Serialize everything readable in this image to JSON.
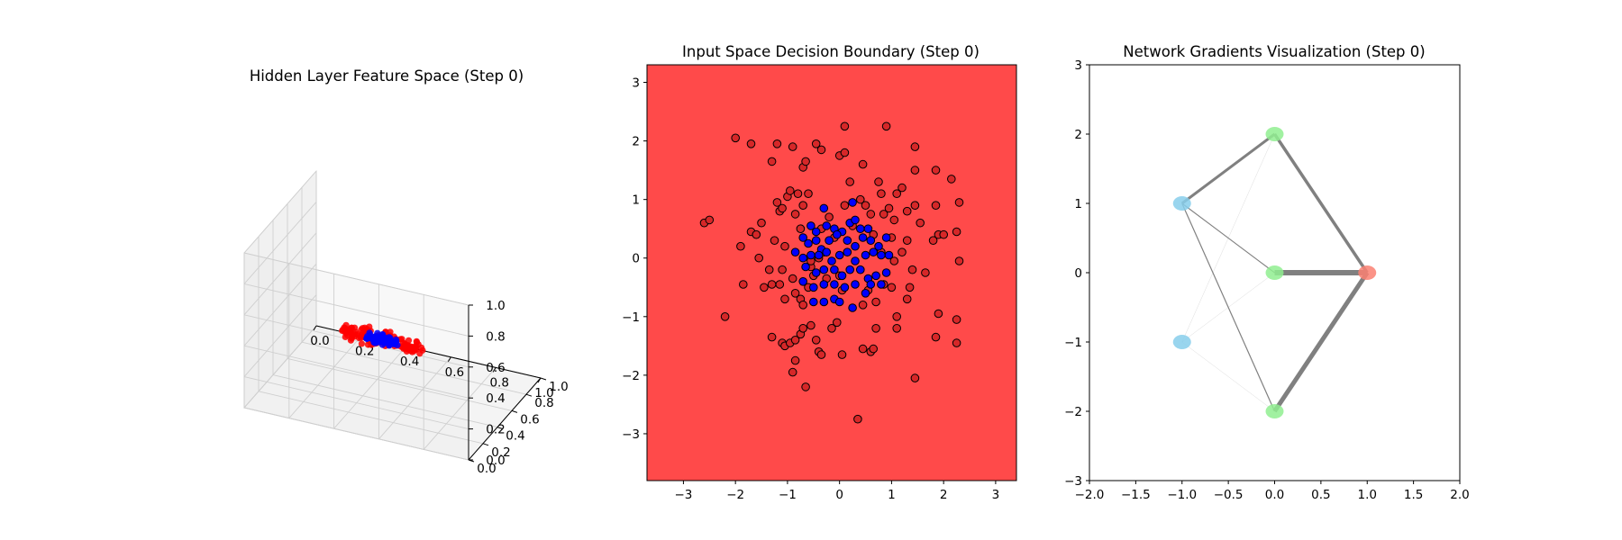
{
  "panels": {
    "hidden": {
      "title": "Hidden Layer Feature Space (Step 0)"
    },
    "input": {
      "title": "Input Space Decision Boundary (Step 0)"
    },
    "network": {
      "title": "Network Gradients Visualization (Step 0)"
    }
  },
  "chart_data": [
    {
      "type": "scatter",
      "projection": "3d",
      "title": "Hidden Layer Feature Space (Step 0)",
      "xlim": [
        0,
        1
      ],
      "ylim": [
        0,
        1
      ],
      "zlim": [
        0,
        1
      ],
      "x_ticks": [
        "0.0",
        "0.2",
        "0.4",
        "0.6",
        "0.8",
        "1.0"
      ],
      "y_ticks": [
        "0.0",
        "0.2",
        "0.4",
        "0.6",
        "0.8",
        "1.0"
      ],
      "z_ticks": [
        "0.0",
        "0.2",
        "0.4",
        "0.6",
        "0.8",
        "1.0"
      ],
      "grid": true,
      "cluster_center": [
        0.45,
        0.5,
        0.33
      ],
      "series": [
        {
          "color": "#ff0000",
          "count": 140
        },
        {
          "color": "#0000ff",
          "count": 60
        }
      ]
    },
    {
      "type": "scatter",
      "title": "Input Space Decision Boundary (Step 0)",
      "xlim": [
        -3.7,
        3.4
      ],
      "ylim": [
        -3.8,
        3.3
      ],
      "x_ticks": [
        "−3",
        "−2",
        "−1",
        "0",
        "1",
        "2",
        "3"
      ],
      "y_ticks": [
        "−3",
        "−2",
        "−1",
        "0",
        "1",
        "2",
        "3"
      ],
      "background_color": "#ff4a4a",
      "series": [
        {
          "color": "#d62728",
          "points": [
            [
              -2.6,
              0.6
            ],
            [
              -2.5,
              0.65
            ],
            [
              -2.0,
              2.05
            ],
            [
              -1.7,
              1.95
            ],
            [
              -1.3,
              1.65
            ],
            [
              -1.2,
              1.95
            ],
            [
              -0.9,
              1.9
            ],
            [
              -0.7,
              1.55
            ],
            [
              -0.65,
              1.65
            ],
            [
              -0.45,
              1.95
            ],
            [
              -0.35,
              1.85
            ],
            [
              0.1,
              2.25
            ],
            [
              0.0,
              1.75
            ],
            [
              0.1,
              1.8
            ],
            [
              0.45,
              1.6
            ],
            [
              0.9,
              2.25
            ],
            [
              1.45,
              1.9
            ],
            [
              -2.2,
              -1.0
            ],
            [
              -1.9,
              0.2
            ],
            [
              -1.85,
              -0.45
            ],
            [
              -1.7,
              0.45
            ],
            [
              -1.6,
              0.4
            ],
            [
              -1.55,
              0.0
            ],
            [
              -1.5,
              0.6
            ],
            [
              -1.45,
              -0.5
            ],
            [
              -1.3,
              -0.45
            ],
            [
              -1.25,
              0.3
            ],
            [
              -1.2,
              0.95
            ],
            [
              -1.15,
              0.8
            ],
            [
              -1.1,
              0.85
            ],
            [
              -1.05,
              0.2
            ],
            [
              -1.0,
              1.05
            ],
            [
              -0.95,
              1.15
            ],
            [
              -0.85,
              0.75
            ],
            [
              -0.8,
              1.1
            ],
            [
              -0.75,
              0.5
            ],
            [
              -0.7,
              0.9
            ],
            [
              -0.6,
              1.1
            ],
            [
              -1.35,
              -0.2
            ],
            [
              -1.15,
              -0.45
            ],
            [
              -1.1,
              -0.2
            ],
            [
              -1.05,
              -0.7
            ],
            [
              -0.9,
              -0.35
            ],
            [
              -0.85,
              -0.6
            ],
            [
              -0.75,
              -0.7
            ],
            [
              -0.7,
              -0.8
            ],
            [
              -0.6,
              -0.5
            ],
            [
              -0.55,
              -0.15
            ],
            [
              -0.5,
              -0.3
            ],
            [
              -0.55,
              -0.05
            ],
            [
              -0.4,
              0.0
            ],
            [
              -1.3,
              -1.35
            ],
            [
              -1.1,
              -1.45
            ],
            [
              -1.05,
              -1.5
            ],
            [
              -0.95,
              -1.45
            ],
            [
              -0.85,
              -1.4
            ],
            [
              -0.75,
              -1.3
            ],
            [
              -0.7,
              -1.2
            ],
            [
              -0.55,
              -1.15
            ],
            [
              -0.45,
              -1.4
            ],
            [
              -0.4,
              -1.6
            ],
            [
              -0.35,
              -1.65
            ],
            [
              -0.15,
              -1.2
            ],
            [
              -0.05,
              -1.1
            ],
            [
              0.05,
              -1.65
            ],
            [
              -0.9,
              -1.95
            ],
            [
              -0.85,
              -1.75
            ],
            [
              -0.65,
              -2.2
            ],
            [
              0.45,
              -1.55
            ],
            [
              0.6,
              -1.6
            ],
            [
              0.65,
              -1.55
            ],
            [
              0.7,
              -1.2
            ],
            [
              0.35,
              -2.75
            ],
            [
              1.1,
              -1.2
            ],
            [
              1.1,
              -1.0
            ],
            [
              1.45,
              -2.05
            ],
            [
              1.85,
              -1.35
            ],
            [
              1.9,
              -0.95
            ],
            [
              2.25,
              -1.05
            ],
            [
              2.25,
              -1.45
            ],
            [
              0.2,
              1.3
            ],
            [
              0.4,
              1.0
            ],
            [
              0.5,
              0.9
            ],
            [
              0.6,
              0.75
            ],
            [
              0.75,
              1.3
            ],
            [
              0.8,
              1.1
            ],
            [
              0.85,
              0.75
            ],
            [
              0.95,
              0.85
            ],
            [
              1.0,
              0.35
            ],
            [
              1.05,
              0.65
            ],
            [
              1.1,
              1.1
            ],
            [
              1.2,
              1.2
            ],
            [
              1.3,
              0.8
            ],
            [
              1.45,
              1.5
            ],
            [
              1.45,
              0.9
            ],
            [
              1.55,
              0.6
            ],
            [
              1.85,
              1.5
            ],
            [
              1.8,
              0.3
            ],
            [
              1.85,
              0.9
            ],
            [
              1.9,
              0.4
            ],
            [
              2.15,
              1.35
            ],
            [
              2.3,
              0.95
            ],
            [
              2.25,
              0.45
            ],
            [
              2.0,
              0.4
            ],
            [
              2.3,
              -0.05
            ],
            [
              1.3,
              0.3
            ],
            [
              1.2,
              0.1
            ],
            [
              1.05,
              -0.05
            ],
            [
              1.4,
              -0.2
            ],
            [
              1.35,
              -0.5
            ],
            [
              1.3,
              -0.7
            ],
            [
              1.0,
              -0.5
            ],
            [
              0.85,
              -0.45
            ],
            [
              0.7,
              -0.75
            ],
            [
              0.55,
              -0.55
            ],
            [
              0.45,
              -0.8
            ],
            [
              0.65,
              0.4
            ],
            [
              0.8,
              0.1
            ],
            [
              -0.3,
              0.1
            ],
            [
              -0.25,
              -0.35
            ],
            [
              0.05,
              -0.55
            ],
            [
              0.0,
              -0.3
            ],
            [
              -0.2,
              0.7
            ],
            [
              -0.35,
              0.5
            ],
            [
              0.1,
              0.9
            ],
            [
              0.25,
              0.55
            ],
            [
              -0.1,
              0.35
            ],
            [
              1.65,
              -0.25
            ]
          ]
        },
        {
          "color": "#0000ff",
          "points": [
            [
              -0.55,
              0.55
            ],
            [
              -0.45,
              0.45
            ],
            [
              -0.25,
              0.55
            ],
            [
              -0.1,
              0.5
            ],
            [
              0.05,
              0.45
            ],
            [
              0.2,
              0.6
            ],
            [
              0.3,
              0.65
            ],
            [
              0.4,
              0.5
            ],
            [
              0.55,
              0.5
            ],
            [
              0.25,
              0.95
            ],
            [
              -0.3,
              0.85
            ],
            [
              -0.7,
              0.35
            ],
            [
              -0.6,
              0.25
            ],
            [
              -0.45,
              0.3
            ],
            [
              -0.35,
              0.15
            ],
            [
              -0.2,
              0.3
            ],
            [
              -0.05,
              0.4
            ],
            [
              0.15,
              0.3
            ],
            [
              0.3,
              0.2
            ],
            [
              0.45,
              0.35
            ],
            [
              0.6,
              0.3
            ],
            [
              0.75,
              0.2
            ],
            [
              0.9,
              0.35
            ],
            [
              -0.85,
              0.1
            ],
            [
              -0.7,
              0.0
            ],
            [
              -0.55,
              0.05
            ],
            [
              -0.4,
              0.05
            ],
            [
              -0.25,
              0.1
            ],
            [
              -0.15,
              -0.05
            ],
            [
              0.0,
              0.05
            ],
            [
              0.15,
              0.1
            ],
            [
              0.3,
              -0.05
            ],
            [
              0.5,
              0.05
            ],
            [
              0.65,
              0.1
            ],
            [
              0.8,
              0.05
            ],
            [
              0.95,
              0.05
            ],
            [
              -0.65,
              -0.15
            ],
            [
              -0.45,
              -0.25
            ],
            [
              -0.3,
              -0.2
            ],
            [
              -0.1,
              -0.2
            ],
            [
              0.05,
              -0.3
            ],
            [
              0.2,
              -0.2
            ],
            [
              0.4,
              -0.2
            ],
            [
              0.55,
              -0.35
            ],
            [
              0.7,
              -0.3
            ],
            [
              0.9,
              -0.25
            ],
            [
              -0.7,
              -0.4
            ],
            [
              -0.5,
              -0.5
            ],
            [
              -0.3,
              -0.45
            ],
            [
              -0.1,
              -0.45
            ],
            [
              0.1,
              -0.5
            ],
            [
              0.3,
              -0.45
            ],
            [
              0.6,
              -0.45
            ],
            [
              0.8,
              -0.45
            ],
            [
              -0.5,
              -0.75
            ],
            [
              -0.3,
              -0.75
            ],
            [
              -0.1,
              -0.7
            ],
            [
              0.0,
              -0.75
            ],
            [
              0.25,
              -0.85
            ],
            [
              0.5,
              -0.6
            ]
          ]
        }
      ]
    },
    {
      "type": "network",
      "title": "Network Gradients Visualization (Step 0)",
      "xlim": [
        -2.0,
        2.0
      ],
      "ylim": [
        -3,
        3
      ],
      "x_ticks": [
        "−2.0",
        "−1.5",
        "−1.0",
        "−0.5",
        "0.0",
        "0.5",
        "1.0",
        "1.5",
        "2.0"
      ],
      "y_ticks": [
        "−3",
        "−2",
        "−1",
        "0",
        "1",
        "2",
        "3"
      ],
      "nodes": [
        {
          "id": "in1",
          "x": -1,
          "y": 1,
          "color": "#87ceeb"
        },
        {
          "id": "in2",
          "x": -1,
          "y": -1,
          "color": "#87ceeb"
        },
        {
          "id": "h1",
          "x": 0,
          "y": 2,
          "color": "#90ee90"
        },
        {
          "id": "h2",
          "x": 0,
          "y": 0,
          "color": "#90ee90"
        },
        {
          "id": "h3",
          "x": 0,
          "y": -2,
          "color": "#90ee90"
        },
        {
          "id": "out",
          "x": 1,
          "y": 0,
          "color": "#fa8072"
        }
      ],
      "edges": [
        {
          "from": "in1",
          "to": "h1",
          "weight": 3.0
        },
        {
          "from": "in1",
          "to": "h2",
          "weight": 1.1
        },
        {
          "from": "in1",
          "to": "h3",
          "weight": 1.2
        },
        {
          "from": "in2",
          "to": "h1",
          "weight": 0.2
        },
        {
          "from": "in2",
          "to": "h2",
          "weight": 0.3
        },
        {
          "from": "in2",
          "to": "h3",
          "weight": 0.2
        },
        {
          "from": "h1",
          "to": "out",
          "weight": 3.5
        },
        {
          "from": "h2",
          "to": "out",
          "weight": 6.0
        },
        {
          "from": "h3",
          "to": "out",
          "weight": 5.0
        }
      ]
    }
  ]
}
